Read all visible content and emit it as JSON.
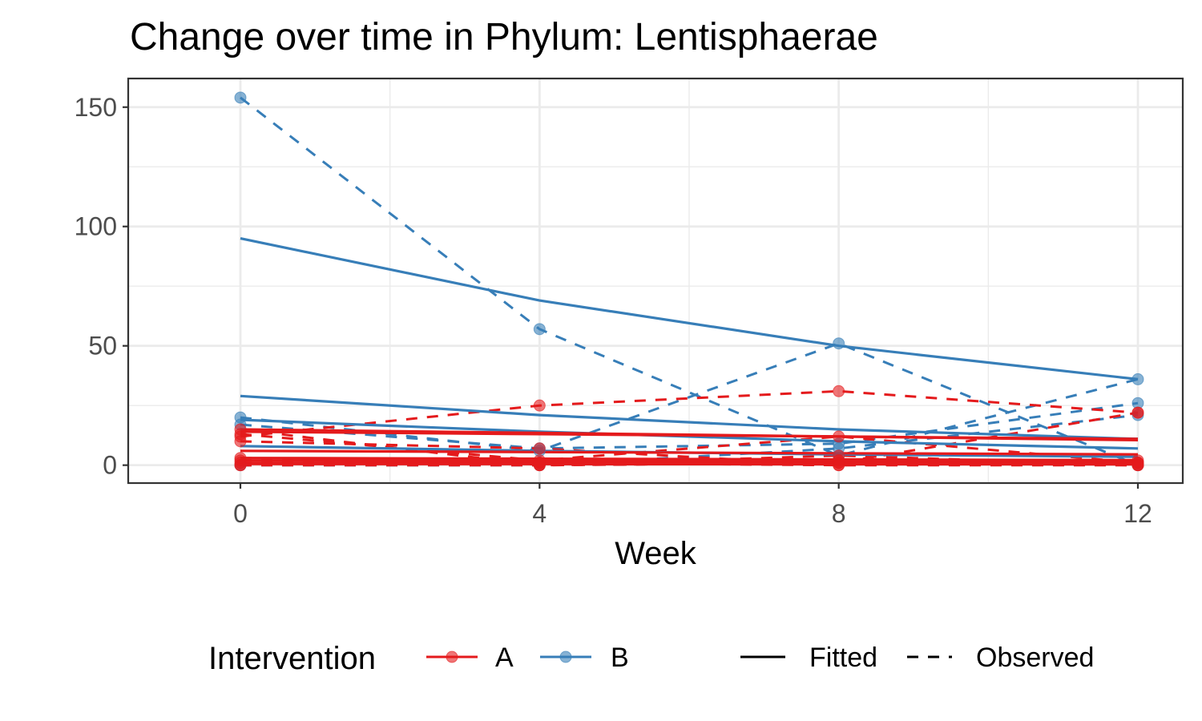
{
  "chart_data": {
    "type": "line",
    "title": "Change over time in Phylum: Lentisphaerae",
    "xlabel": "Week",
    "ylabel": "",
    "xlim": [
      -1.5,
      12.6
    ],
    "ylim": [
      -7.5,
      162
    ],
    "x_ticks": [
      0,
      4,
      8,
      12
    ],
    "x_tick_labels": [
      "0",
      "4",
      "8",
      "12"
    ],
    "x_minor_ticks": [
      2,
      6,
      10
    ],
    "y_ticks": [
      0,
      50,
      100,
      150
    ],
    "y_tick_labels": [
      "0",
      "50",
      "100",
      "150"
    ],
    "y_minor_ticks": [
      25,
      75,
      125
    ],
    "grid": true,
    "legend_position": "bottom",
    "legend": {
      "color_title": "Intervention",
      "color_items": [
        {
          "label": "A",
          "color": "#E41A1C"
        },
        {
          "label": "B",
          "color": "#377EB8"
        }
      ],
      "linetype_items": [
        {
          "label": "Fitted",
          "dash": "solid"
        },
        {
          "label": "Observed",
          "dash": "dashed"
        }
      ]
    },
    "colors": {
      "A": "#E41A1C",
      "B": "#377EB8"
    },
    "x": [
      0,
      4,
      8,
      12
    ],
    "observed": [
      {
        "group": "B",
        "values": [
          154,
          57,
          4,
          36
        ]
      },
      {
        "group": "B",
        "values": [
          20,
          6,
          51,
          0
        ]
      },
      {
        "group": "B",
        "values": [
          17,
          7,
          9,
          26
        ]
      },
      {
        "group": "B",
        "values": [
          0,
          0,
          7,
          21
        ]
      },
      {
        "group": "A",
        "values": [
          12,
          25,
          31,
          22
        ]
      },
      {
        "group": "A",
        "values": [
          15,
          0,
          1,
          22
        ]
      },
      {
        "group": "A",
        "values": [
          13,
          2,
          12,
          1
        ]
      },
      {
        "group": "A",
        "values": [
          10,
          7,
          0,
          1
        ]
      },
      {
        "group": "A",
        "values": [
          0,
          0,
          4,
          0
        ]
      },
      {
        "group": "A",
        "values": [
          2,
          1,
          2,
          2
        ]
      },
      {
        "group": "A",
        "values": [
          1,
          0,
          1,
          0
        ]
      },
      {
        "group": "A",
        "values": [
          3,
          1,
          2,
          1
        ]
      },
      {
        "group": "A",
        "values": [
          0,
          1,
          0,
          0
        ]
      }
    ],
    "fitted": [
      {
        "group": "B",
        "values": [
          95,
          69,
          50,
          36
        ]
      },
      {
        "group": "B",
        "values": [
          29,
          21,
          15,
          11
        ]
      },
      {
        "group": "B",
        "values": [
          19,
          14,
          10,
          7
        ]
      },
      {
        "group": "B",
        "values": [
          8,
          6,
          4.5,
          3.5
        ]
      },
      {
        "group": "A",
        "values": [
          15,
          13.5,
          12,
          10.5
        ]
      },
      {
        "group": "A",
        "values": [
          14,
          13,
          12,
          11
        ]
      },
      {
        "group": "A",
        "values": [
          6,
          5.5,
          5,
          4.5
        ]
      },
      {
        "group": "A",
        "values": [
          3,
          2.7,
          2.4,
          2.1
        ]
      },
      {
        "group": "A",
        "values": [
          2,
          1.8,
          1.6,
          1.4
        ]
      },
      {
        "group": "A",
        "values": [
          1,
          0.9,
          0.8,
          0.7
        ]
      },
      {
        "group": "A",
        "values": [
          0.5,
          0.45,
          0.4,
          0.35
        ]
      }
    ]
  }
}
